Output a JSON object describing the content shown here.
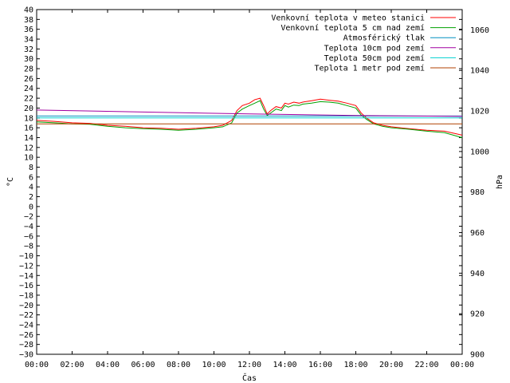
{
  "chart_data": {
    "type": "line",
    "xlabel": "Čas",
    "ylabel": "°C",
    "y2label": "hPa",
    "ylim": [
      -30,
      40
    ],
    "y2lim": [
      900,
      1070
    ],
    "xlim_hours": [
      0,
      24
    ],
    "x_tick_labels": [
      "00:00",
      "02:00",
      "04:00",
      "06:00",
      "08:00",
      "10:00",
      "12:00",
      "14:00",
      "16:00",
      "18:00",
      "20:00",
      "22:00",
      "00:00"
    ],
    "y_ticks": [
      40,
      38,
      36,
      34,
      32,
      30,
      28,
      26,
      24,
      22,
      20,
      18,
      16,
      14,
      12,
      10,
      8,
      6,
      4,
      2,
      0,
      -2,
      -4,
      -6,
      -8,
      -10,
      -12,
      -14,
      -16,
      -18,
      -20,
      -22,
      -24,
      -26,
      -28,
      -30
    ],
    "y2_ticks": [
      1060,
      1040,
      1020,
      1000,
      980,
      960,
      940,
      920,
      900
    ],
    "grid": false,
    "legend_position": "top-right",
    "series": [
      {
        "name": "Venkovní teplota v meteo stanici",
        "color": "#ff0000",
        "axis": "left",
        "x": [
          0,
          1,
          2,
          3,
          4,
          5,
          6,
          7,
          8,
          9,
          10,
          10.5,
          11,
          11.3,
          11.6,
          12,
          12.3,
          12.6,
          12.8,
          13,
          13.2,
          13.5,
          13.8,
          14,
          14.2,
          14.5,
          14.8,
          15,
          15.5,
          16,
          16.5,
          17,
          17.5,
          18,
          18.3,
          18.6,
          19,
          19.5,
          20,
          21,
          22,
          23,
          24
        ],
        "y": [
          17.5,
          17.3,
          17.0,
          16.9,
          16.5,
          16.3,
          16.0,
          15.9,
          15.7,
          15.9,
          16.2,
          16.5,
          17.5,
          19.5,
          20.5,
          21.0,
          21.7,
          22.0,
          20.5,
          18.8,
          19.5,
          20.3,
          20.0,
          21.0,
          20.8,
          21.2,
          21.0,
          21.2,
          21.5,
          21.8,
          21.6,
          21.4,
          21.0,
          20.5,
          19.0,
          18.0,
          17.0,
          16.5,
          16.2,
          15.8,
          15.5,
          15.3,
          14.5
        ]
      },
      {
        "name": "Venkovní teplota 5 cm nad zemí",
        "color": "#00a000",
        "axis": "left",
        "x": [
          0,
          1,
          2,
          3,
          4,
          5,
          6,
          7,
          8,
          9,
          10,
          10.5,
          11,
          11.3,
          11.6,
          12,
          12.3,
          12.6,
          12.8,
          13,
          13.2,
          13.5,
          13.8,
          14,
          14.2,
          14.5,
          14.8,
          15,
          15.5,
          16,
          16.5,
          17,
          17.5,
          18,
          18.3,
          18.6,
          19,
          19.5,
          20,
          21,
          22,
          23,
          24
        ],
        "y": [
          17.2,
          17.0,
          16.8,
          16.7,
          16.3,
          16.0,
          15.8,
          15.7,
          15.5,
          15.7,
          16.0,
          16.2,
          17.0,
          19.0,
          19.8,
          20.5,
          21.0,
          21.5,
          19.8,
          18.5,
          19.0,
          19.8,
          19.5,
          20.5,
          20.2,
          20.6,
          20.5,
          20.8,
          21.0,
          21.3,
          21.2,
          21.0,
          20.5,
          20.0,
          18.6,
          17.7,
          16.8,
          16.3,
          16.0,
          15.7,
          15.3,
          15.0,
          14.0
        ]
      },
      {
        "name": "Atmosférický tlak",
        "color": "#0090c0",
        "axis": "right",
        "x": [
          0,
          24
        ],
        "y": [
          1017.5,
          1017.5
        ]
      },
      {
        "name": "Teplota 10cm pod zemí",
        "color": "#a000a0",
        "axis": "left",
        "x": [
          0,
          6,
          12,
          18,
          24
        ],
        "y": [
          19.6,
          19.2,
          18.8,
          18.5,
          18.3
        ]
      },
      {
        "name": "Teplota 50cm pod zemí",
        "color": "#00d0d0",
        "axis": "left",
        "x": [
          0,
          24
        ],
        "y": [
          18.0,
          18.0
        ]
      },
      {
        "name": "Teplota 1 metr pod zemí",
        "color": "#b04000",
        "axis": "left",
        "x": [
          0,
          24
        ],
        "y": [
          16.8,
          16.8
        ]
      }
    ]
  }
}
